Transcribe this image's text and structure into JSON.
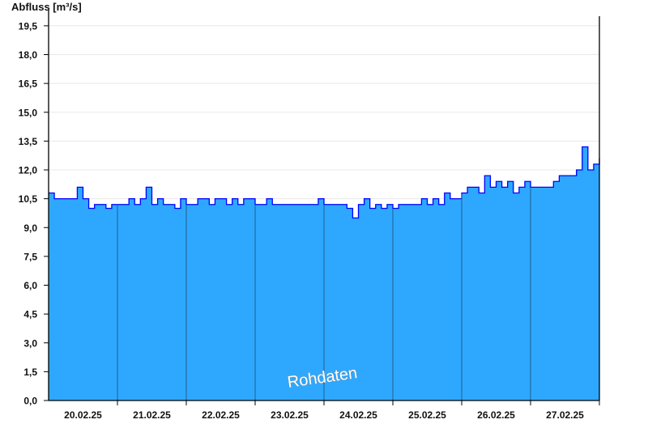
{
  "chart_data": {
    "type": "area",
    "ylabel": "Abfluss [m³/s]",
    "ylim": [
      0,
      20
    ],
    "yticks": [
      "0,0",
      "1,5",
      "3,0",
      "4,5",
      "6,0",
      "7,5",
      "9,0",
      "10,5",
      "12,0",
      "13,5",
      "15,0",
      "16,5",
      "18,0",
      "19,5"
    ],
    "ytick_values": [
      0,
      1.5,
      3,
      4.5,
      6,
      7.5,
      9,
      10.5,
      12,
      13.5,
      15,
      16.5,
      18,
      19.5
    ],
    "xlim": [
      "20.02.25 00:00",
      "28.02.25 00:00"
    ],
    "xticks": [
      "20.02.25",
      "21.02.25",
      "22.02.25",
      "23.02.25",
      "24.02.25",
      "25.02.25",
      "26.02.25",
      "27.02.25"
    ],
    "grid": true,
    "watermark": "Rohdaten",
    "series": [
      {
        "x_start": "20.02.25 00:00",
        "interval_hours": 2,
        "values": [
          10.8,
          10.5,
          10.5,
          10.5,
          10.5,
          11.1,
          10.5,
          10.0,
          10.2,
          10.2,
          10.0,
          10.2,
          10.2,
          10.2,
          10.5,
          10.2,
          10.5,
          11.1,
          10.2,
          10.5,
          10.2,
          10.2,
          10.0,
          10.5,
          10.2,
          10.2,
          10.5,
          10.5,
          10.2,
          10.5,
          10.5,
          10.2,
          10.5,
          10.2,
          10.5,
          10.5,
          10.2,
          10.2,
          10.5,
          10.2,
          10.2,
          10.2,
          10.2,
          10.2,
          10.2,
          10.2,
          10.2,
          10.5,
          10.2,
          10.2,
          10.2,
          10.2,
          10.0,
          9.5,
          10.2,
          10.5,
          10.0,
          10.2,
          10.0,
          10.2,
          10.0,
          10.2,
          10.2,
          10.2,
          10.2,
          10.5,
          10.2,
          10.5,
          10.2,
          10.8,
          10.5,
          10.5,
          10.8,
          11.1,
          11.1,
          10.8,
          11.7,
          11.1,
          11.4,
          11.1,
          11.4,
          10.8,
          11.1,
          11.4,
          11.1,
          11.1,
          11.1,
          11.1,
          11.4,
          11.7,
          11.7,
          11.7,
          12.0,
          13.2,
          12.0,
          12.3,
          12.6
        ]
      }
    ],
    "colors": {
      "fill": "#2ea8ff",
      "line": "#0000ff",
      "grid": "#e8e8e8",
      "day_line": "#1f5f8f"
    }
  }
}
